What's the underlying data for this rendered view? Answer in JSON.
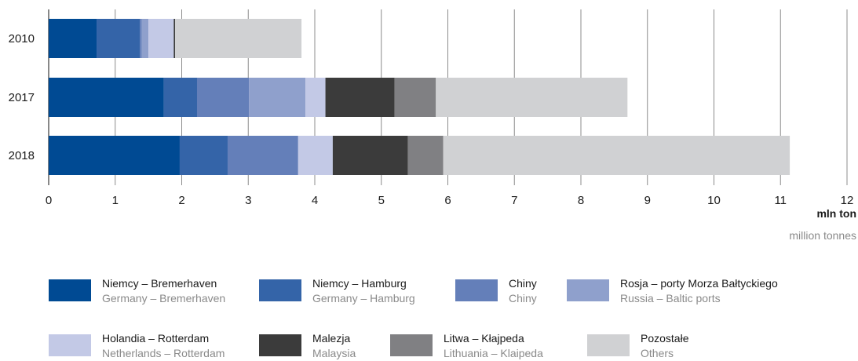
{
  "chart_data": {
    "type": "bar",
    "orientation": "horizontal",
    "stacked": true,
    "categories": [
      "2010",
      "2017",
      "2018"
    ],
    "series": [
      {
        "name": "Niemcy – Bremerhaven",
        "name_en": "Germany – Bremerhaven",
        "color": "#004a93",
        "values": [
          0.72,
          1.73,
          1.97
        ]
      },
      {
        "name": "Niemcy – Hamburg",
        "name_en": "Germany – Hamburg",
        "color": "#3464a8",
        "values": [
          0.65,
          0.5,
          0.72
        ]
      },
      {
        "name": "Chiny",
        "name_en": "Chiny",
        "color": "#647fb9",
        "values": [
          0.03,
          0.78,
          1.06
        ]
      },
      {
        "name": "Rosja – porty Morza Bałtyckiego",
        "name_en": "Russia – Baltic ports",
        "color": "#8fa0cc",
        "values": [
          0.1,
          0.85,
          0.0
        ]
      },
      {
        "name": "Holandia – Rotterdam",
        "name_en": "Netherlands – Rotterdam",
        "color": "#c3c9e6",
        "values": [
          0.38,
          0.3,
          0.52
        ]
      },
      {
        "name": "Malezja",
        "name_en": "Malaysia",
        "color": "#3b3b3b",
        "values": [
          0.02,
          1.04,
          1.13
        ]
      },
      {
        "name": "Litwa – Kłajpeda",
        "name_en": "Lithuania – Klaipeda",
        "color": "#808083",
        "values": [
          0.0,
          0.62,
          0.53
        ]
      },
      {
        "name": "Pozostałe",
        "name_en": "Others",
        "color": "#d0d1d3",
        "values": [
          1.9,
          2.88,
          5.21
        ]
      }
    ],
    "xlim": [
      0,
      12
    ],
    "xticks": [
      0,
      1,
      2,
      3,
      4,
      5,
      6,
      7,
      8,
      9,
      10,
      11,
      12
    ],
    "unit_label": "mln ton",
    "unit_label_en": "million tonnes",
    "grid": true,
    "legend_position": "bottom"
  }
}
